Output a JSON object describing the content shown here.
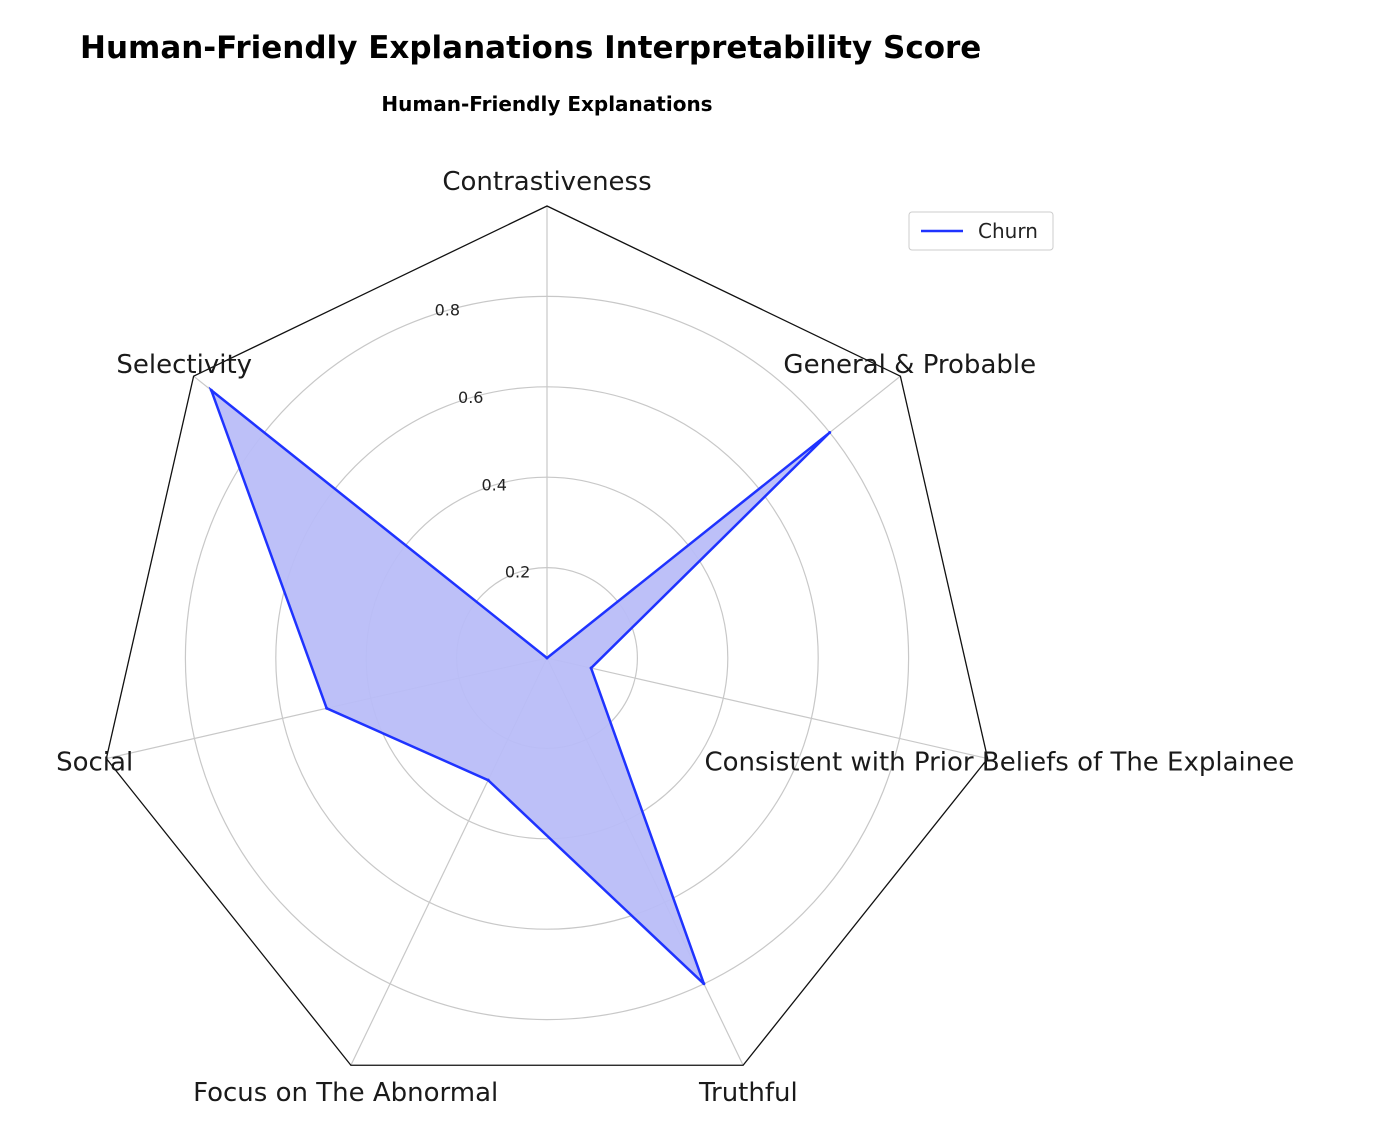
{
  "chart_data": {
    "type": "radar",
    "title": "Human-Friendly Explanations Interpretability Score",
    "subtitle": "Human-Friendly Explanations",
    "categories": [
      "Contrastiveness",
      "General & Probable",
      "Consistent with Prior Beliefs of The Explainee",
      "Truthful",
      "Focus on The Abnormal",
      "Social",
      "Selectivity"
    ],
    "series": [
      {
        "name": "Churn",
        "values": [
          0.0,
          0.8,
          0.1,
          0.8,
          0.3,
          0.5,
          0.95
        ],
        "color": "#1f33ff",
        "fill": "#b9bdf8"
      }
    ],
    "radial_ticks": [
      "0.2",
      "0.4",
      "0.6",
      "0.8"
    ],
    "radial_tick_values": [
      0.2,
      0.4,
      0.6,
      0.8
    ],
    "rlim": [
      0,
      1
    ],
    "grid": true,
    "legend_position": "top-right"
  }
}
